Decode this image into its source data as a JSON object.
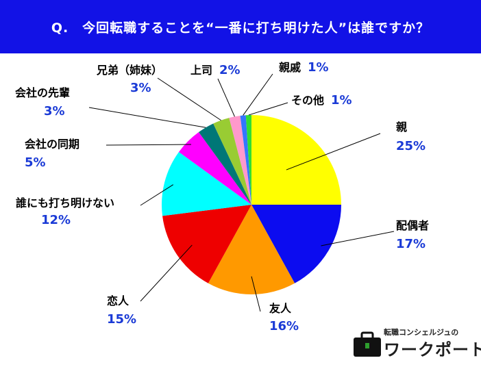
{
  "header": {
    "question": "Q.　今回転職することを“一番に打ち明けた人”は誰ですか？"
  },
  "logo": {
    "tagline": "転職コンシェルジュの",
    "name": "ワークポート"
  },
  "colors": {
    "header_bg": "#1212e6",
    "percent_text": "#1a3ad6"
  },
  "chart_data": {
    "type": "pie",
    "start": "12 o'clock, clockwise",
    "slices": [
      {
        "label": "親",
        "value": 25,
        "display": "25%",
        "color": "#ffff00"
      },
      {
        "label": "配偶者",
        "value": 17,
        "display": "17%",
        "color": "#0c0cf0"
      },
      {
        "label": "友人",
        "value": 16,
        "display": "16%",
        "color": "#ff9900"
      },
      {
        "label": "恋人",
        "value": 15,
        "display": "15%",
        "color": "#ee0000"
      },
      {
        "label": "誰にも打ち明けない",
        "value": 12,
        "display": "12%",
        "color": "#00ffff"
      },
      {
        "label": "会社の同期",
        "value": 5,
        "display": "5%",
        "color": "#ff00ff"
      },
      {
        "label": "会社の先輩",
        "value": 3,
        "display": "3%",
        "color": "#007777"
      },
      {
        "label": "兄弟（姉妹）",
        "value": 3,
        "display": "3%",
        "color": "#99cc33"
      },
      {
        "label": "上司",
        "value": 2,
        "display": "2%",
        "color": "#ff99cc"
      },
      {
        "label": "親戚",
        "value": 1,
        "display": "1%",
        "color": "#3377ff"
      },
      {
        "label": "その他",
        "value": 1,
        "display": "1%",
        "color": "#33dd33"
      }
    ]
  }
}
